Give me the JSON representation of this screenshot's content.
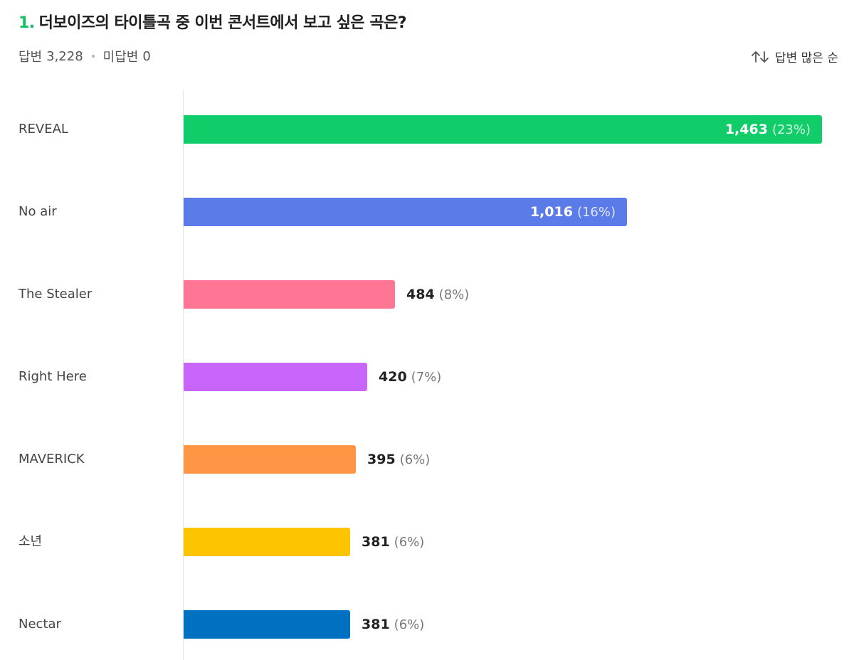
{
  "question": {
    "number": "1.",
    "title": "더보이즈의 타이틀곡 중 이번 콘서트에서 보고 싶은 곡은?"
  },
  "meta": {
    "answered_label": "답변",
    "answered_count": "3,228",
    "unanswered_label": "미답변",
    "unanswered_count": "0"
  },
  "sort": {
    "icon": "sort-arrows-icon",
    "label": "답변 많은 순"
  },
  "chart_data": {
    "type": "bar",
    "orientation": "horizontal",
    "categories": [
      "REVEAL",
      "No air",
      "The Stealer",
      "Right Here",
      "MAVERICK",
      "소년",
      "Nectar"
    ],
    "values": [
      1463,
      1016,
      484,
      420,
      395,
      381,
      381
    ],
    "value_labels": [
      "1,463",
      "1,016",
      "484",
      "420",
      "395",
      "381",
      "381"
    ],
    "percent_labels": [
      "(23%)",
      "(16%)",
      "(8%)",
      "(7%)",
      "(6%)",
      "(6%)",
      "(6%)"
    ],
    "colors": [
      "#10cc69",
      "#5b7be9",
      "#ff7694",
      "#c866fb",
      "#ff9645",
      "#fdc500",
      "#0071c0"
    ],
    "xlim": [
      0,
      1463
    ],
    "grid": false
  }
}
